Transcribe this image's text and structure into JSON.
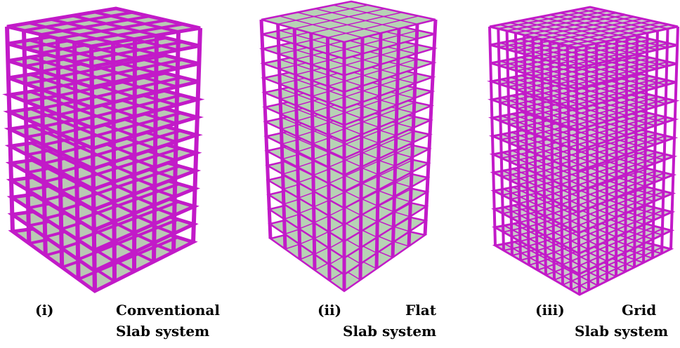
{
  "figures": [
    {
      "number": "(i)",
      "title": "Conventional",
      "subtitle": "Slab system"
    },
    {
      "number": "(ii)",
      "title": "Flat",
      "subtitle": "Slab system"
    },
    {
      "number": "(iii)",
      "title": "Grid",
      "subtitle": "Slab system"
    }
  ]
}
